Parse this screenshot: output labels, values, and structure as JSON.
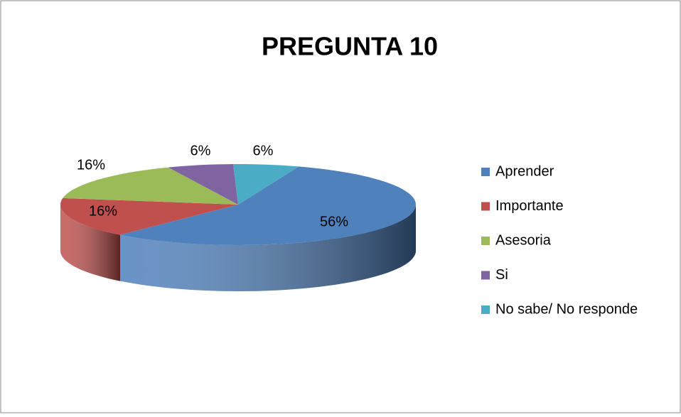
{
  "chart_data": {
    "type": "pie",
    "title": "PREGUNTA 10",
    "categories": [
      "Aprender",
      "Importante",
      "Asesoria",
      "Si",
      "No sabe/ No responde"
    ],
    "values": [
      56,
      16,
      16,
      6,
      6
    ],
    "value_labels": [
      "56%",
      "16%",
      "16%",
      "6%",
      "6%"
    ],
    "colors": [
      "#4f81bd",
      "#c0504d",
      "#9bbb59",
      "#8064a2",
      "#4bacc6"
    ],
    "legend": "right"
  }
}
